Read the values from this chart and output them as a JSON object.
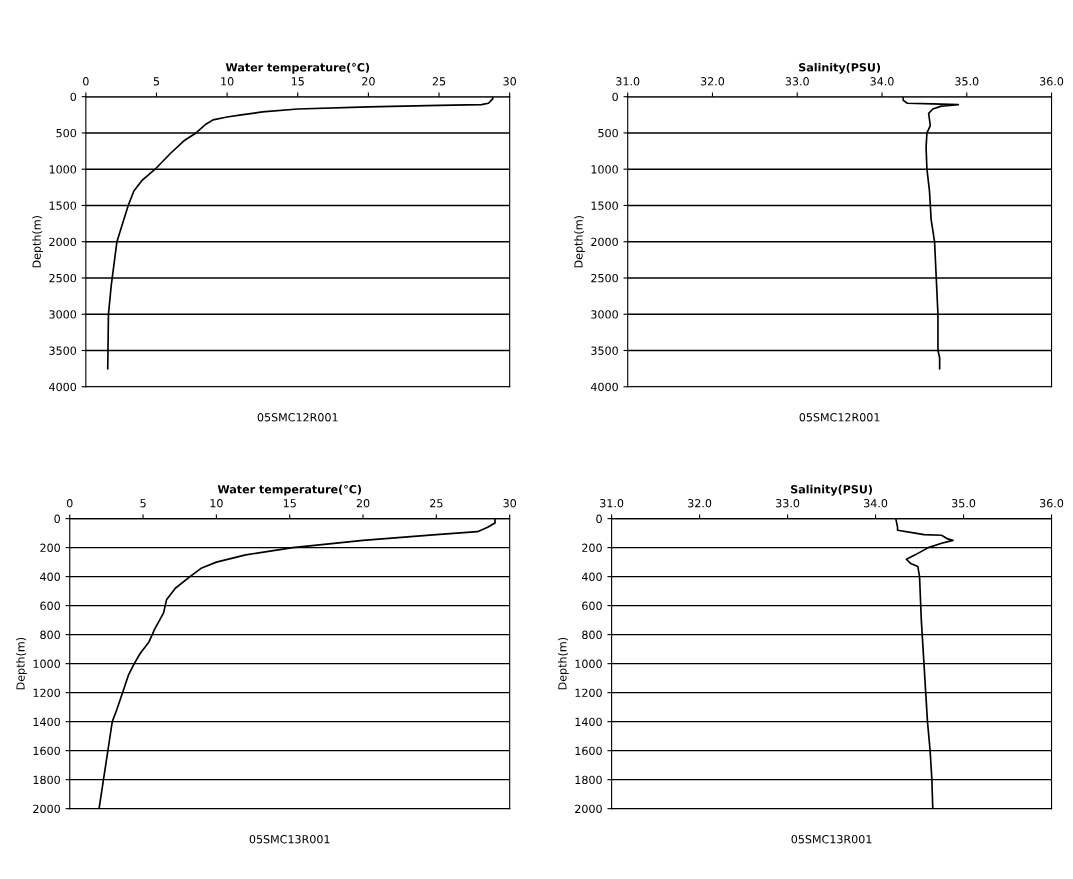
{
  "chart_data": [
    {
      "type": "line",
      "xlabel": "Water temperature(°C)",
      "ylabel": "Depth(m)",
      "xlim": [
        0,
        30
      ],
      "xticks": [
        0,
        5,
        10,
        15,
        20,
        25,
        30
      ],
      "ylim": [
        4000,
        0
      ],
      "yticks": [
        0,
        500,
        1000,
        1500,
        2000,
        2500,
        3000,
        3500,
        4000
      ],
      "grid": "y",
      "annotations": [
        "05SMC12R001"
      ],
      "series": [
        {
          "color": "#000000",
          "x": [
            28.8,
            28.8,
            28.5,
            28,
            25,
            20,
            15,
            12.5,
            11,
            10,
            9,
            8.5,
            7.8,
            7,
            6,
            4.9,
            4,
            3.4,
            3.0,
            2.6,
            2.2,
            2.0,
            1.8,
            1.6,
            1.55
          ],
          "values": [
            0,
            30,
            90,
            110,
            120,
            140,
            170,
            210,
            250,
            280,
            320,
            380,
            500,
            600,
            780,
            1000,
            1150,
            1300,
            1500,
            1750,
            2000,
            2300,
            2600,
            3000,
            3750
          ]
        }
      ]
    },
    {
      "type": "line",
      "xlabel": "Salinity(PSU)",
      "ylabel": "Depth(m)",
      "xlim": [
        31,
        36
      ],
      "xticks": [
        {
          "value": 31,
          "label": "31.0"
        },
        {
          "value": 32,
          "label": "32.0"
        },
        {
          "value": 33,
          "label": "33.0"
        },
        {
          "value": 34,
          "label": "34.0"
        },
        {
          "value": 35,
          "label": "35.0"
        },
        {
          "value": 36,
          "label": "36.0"
        }
      ],
      "ylim": [
        4000,
        0
      ],
      "yticks": [
        0,
        500,
        1000,
        1500,
        2000,
        2500,
        3000,
        3500,
        4000
      ],
      "grid": "y",
      "annotations": [
        "05SMC12R001"
      ],
      "series": [
        {
          "color": "#000000",
          "x": [
            34.25,
            34.25,
            34.3,
            34.6,
            34.9,
            34.7,
            34.6,
            34.55,
            34.57,
            34.53,
            34.52,
            34.53,
            34.56,
            34.58,
            34.62,
            34.64,
            34.66,
            34.66,
            34.68,
            34.68
          ],
          "values": [
            0,
            50,
            90,
            100,
            110,
            130,
            170,
            230,
            400,
            500,
            700,
            1000,
            1300,
            1700,
            2000,
            2500,
            3000,
            3500,
            3600,
            3750
          ]
        }
      ]
    },
    {
      "type": "line",
      "xlabel": "Water temperature(°C)",
      "ylabel": "Depth(m)",
      "xlim": [
        0,
        30
      ],
      "xticks": [
        0,
        5,
        10,
        15,
        20,
        25,
        30
      ],
      "ylim": [
        2000,
        0
      ],
      "yticks": [
        0,
        200,
        400,
        600,
        800,
        1000,
        1200,
        1400,
        1600,
        1800,
        2000
      ],
      "grid": "y",
      "annotations": [
        "05SMC13R001"
      ],
      "series": [
        {
          "color": "#000000",
          "x": [
            29,
            29,
            28.5,
            27.8,
            25,
            20,
            15.2,
            12,
            10,
            9,
            8.2,
            7.2,
            6.6,
            6.4,
            5.8,
            5.4,
            4.8,
            4.4,
            4.0,
            3.6,
            3.2,
            2.9,
            2.6,
            2.3,
            2.0
          ],
          "values": [
            0,
            30,
            60,
            90,
            110,
            150,
            200,
            250,
            300,
            340,
            400,
            480,
            560,
            650,
            760,
            850,
            930,
            1000,
            1080,
            1200,
            1320,
            1400,
            1600,
            1800,
            2000
          ]
        }
      ]
    },
    {
      "type": "line",
      "xlabel": "Salinity(PSU)",
      "ylabel": "Depth(m)",
      "xlim": [
        31,
        36
      ],
      "xticks": [
        {
          "value": 31,
          "label": "31.0"
        },
        {
          "value": 32,
          "label": "32.0"
        },
        {
          "value": 33,
          "label": "33.0"
        },
        {
          "value": 34,
          "label": "34.0"
        },
        {
          "value": 35,
          "label": "35.0"
        },
        {
          "value": 36,
          "label": "36.0"
        }
      ],
      "ylim": [
        2000,
        0
      ],
      "yticks": [
        0,
        200,
        400,
        600,
        800,
        1000,
        1200,
        1400,
        1600,
        1800,
        2000
      ],
      "grid": "y",
      "annotations": [
        "05SMC13R001"
      ],
      "series": [
        {
          "color": "#000000",
          "x": [
            34.23,
            34.25,
            34.25,
            34.45,
            34.55,
            34.75,
            34.82,
            34.88,
            34.75,
            34.6,
            34.45,
            34.35,
            34.4,
            34.48,
            34.5,
            34.52,
            34.55,
            34.57,
            34.59,
            34.62,
            34.64,
            34.65
          ],
          "values": [
            0,
            60,
            80,
            100,
            110,
            115,
            140,
            150,
            170,
            200,
            250,
            280,
            310,
            330,
            400,
            700,
            1000,
            1200,
            1400,
            1600,
            1800,
            2000
          ]
        }
      ]
    }
  ]
}
